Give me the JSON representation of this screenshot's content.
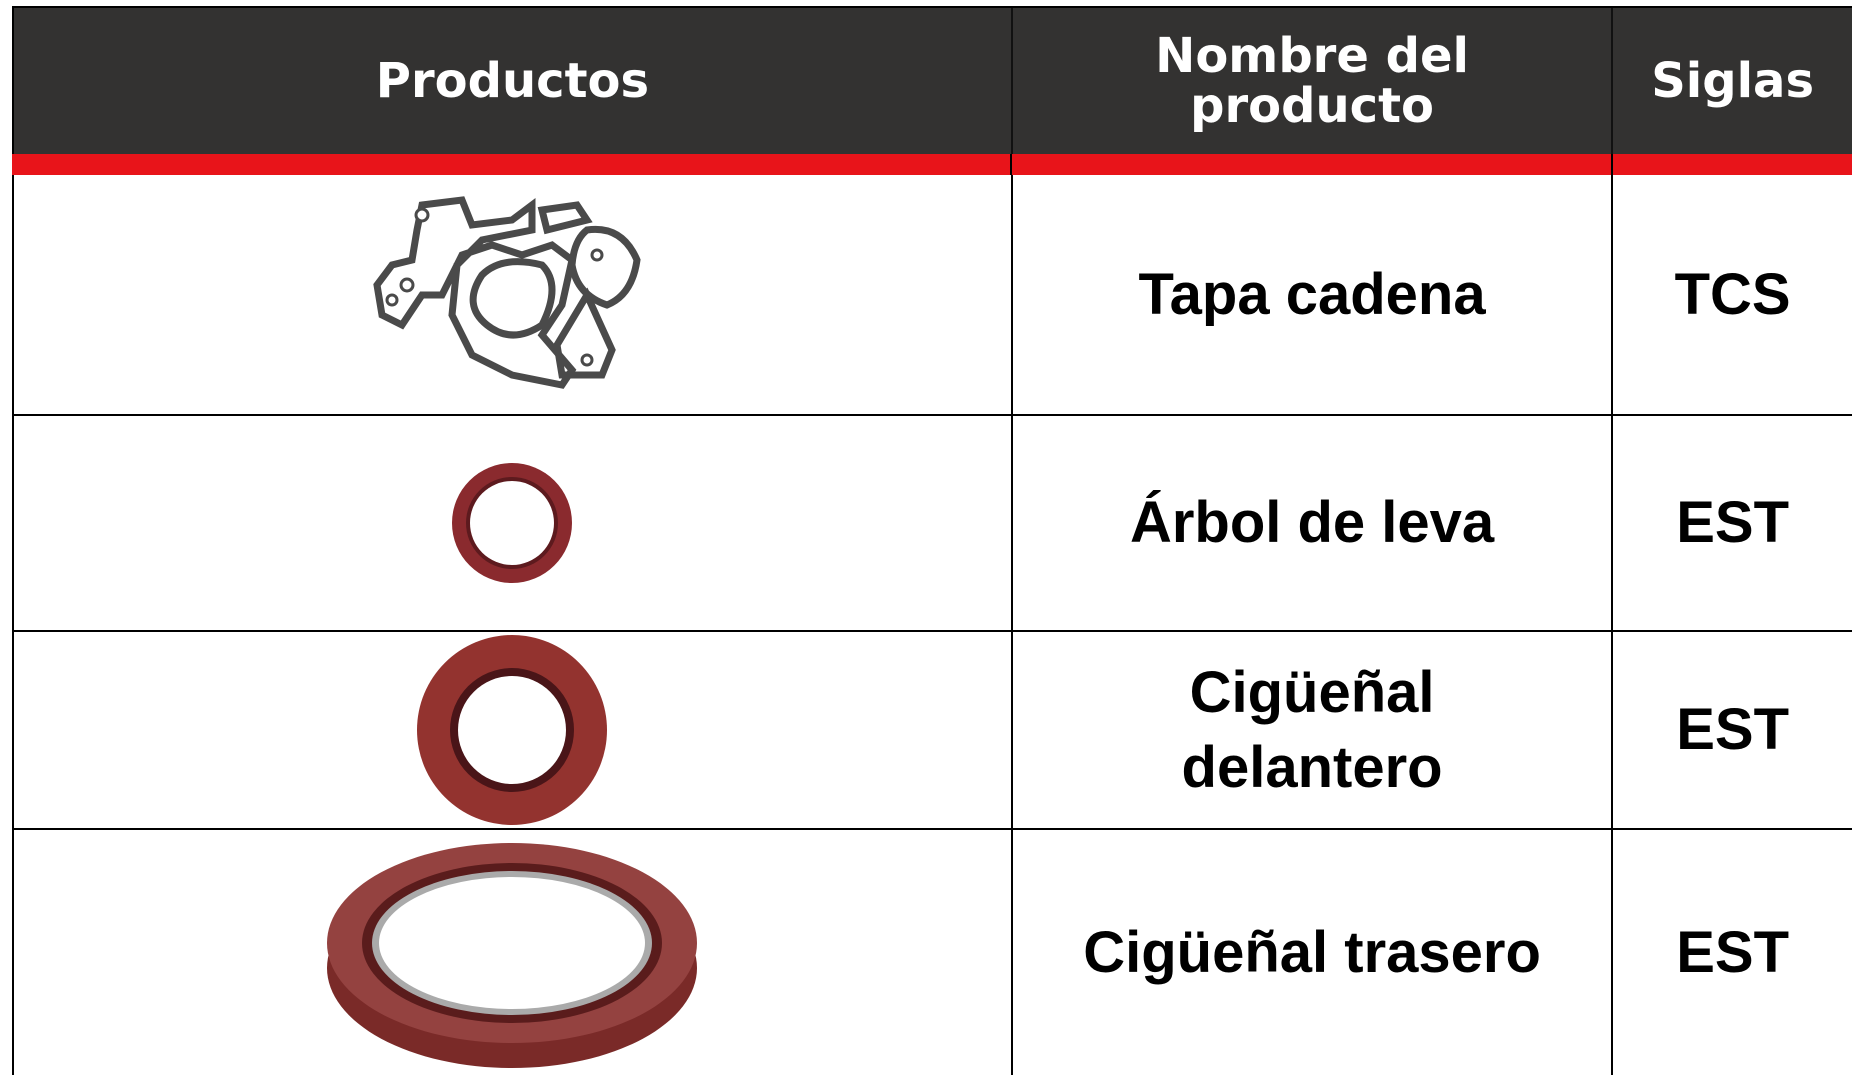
{
  "table": {
    "headers": [
      "Productos",
      "Nombre del producto",
      "Siglas"
    ],
    "rows": [
      [
        "Tapa cadena",
        "TCS"
      ],
      [
        "Árbol de leva",
        "EST"
      ],
      [
        "Cigüeñal delantero",
        "EST"
      ],
      [
        "Cigüeñal trasero",
        "EST"
      ]
    ]
  }
}
